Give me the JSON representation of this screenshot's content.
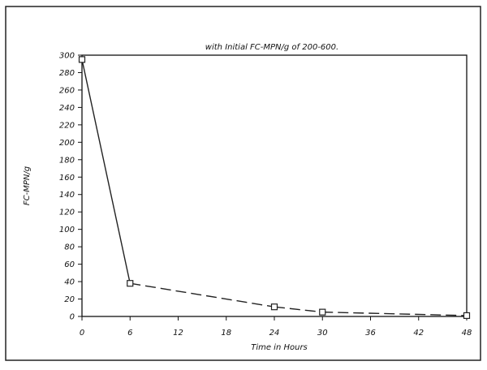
{
  "chart_data": {
    "type": "line",
    "title": "with Initial FC-MPN/g of 200-600.",
    "xlabel": "Time in Hours",
    "ylabel": "FC-MPN/g",
    "xlim": [
      0,
      48
    ],
    "ylim": [
      0,
      300
    ],
    "x_ticks": [
      0,
      6,
      12,
      18,
      24,
      30,
      36,
      42,
      48
    ],
    "x_tick_labels": [
      "0",
      "6",
      "12",
      "18",
      "24",
      "30",
      "36",
      "42",
      "48"
    ],
    "y_ticks": [
      0,
      20,
      40,
      60,
      80,
      100,
      120,
      140,
      160,
      180,
      200,
      220,
      240,
      260,
      280,
      300
    ],
    "y_tick_labels": [
      "0",
      "20",
      "40",
      "60",
      "80",
      "100",
      "120",
      "140",
      "160",
      "180",
      "200",
      "220",
      "240",
      "260",
      "280",
      "300"
    ],
    "grid": false,
    "marker": "square",
    "series": [
      {
        "x": [
          0,
          6,
          24,
          30,
          48
        ],
        "y": [
          295,
          38,
          11,
          5,
          1
        ],
        "segment_styles": [
          "solid",
          "dashed",
          "dashed",
          "dashed"
        ]
      }
    ],
    "colors": {
      "line": "#222222",
      "marker_fill": "#ffffff",
      "axis": "#111111"
    }
  }
}
